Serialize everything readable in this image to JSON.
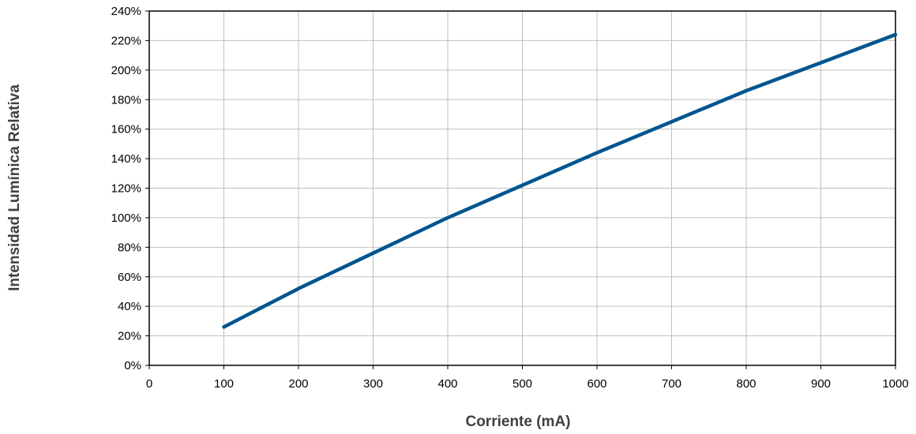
{
  "chart_data": {
    "type": "line",
    "title": "",
    "xlabel": "Corriente (mA)",
    "ylabel": "Intensidad Lumínica Relativa",
    "xlim": [
      0,
      1000
    ],
    "ylim": [
      0,
      240
    ],
    "x_ticks": [
      "0",
      "100",
      "200",
      "300",
      "400",
      "500",
      "600",
      "700",
      "800",
      "900",
      "1000"
    ],
    "y_ticks": [
      "0%",
      "20%",
      "40%",
      "60%",
      "80%",
      "100%",
      "120%",
      "140%",
      "160%",
      "180%",
      "200%",
      "220%",
      "240%"
    ],
    "grid": true,
    "legend": "none",
    "series_color": "#00558f",
    "series": [
      {
        "x": [
          100,
          200,
          300,
          400,
          500,
          600,
          700,
          800,
          900,
          1000
        ],
        "values": [
          26,
          52,
          76,
          100,
          122,
          144,
          165,
          186,
          205,
          224
        ]
      }
    ]
  }
}
